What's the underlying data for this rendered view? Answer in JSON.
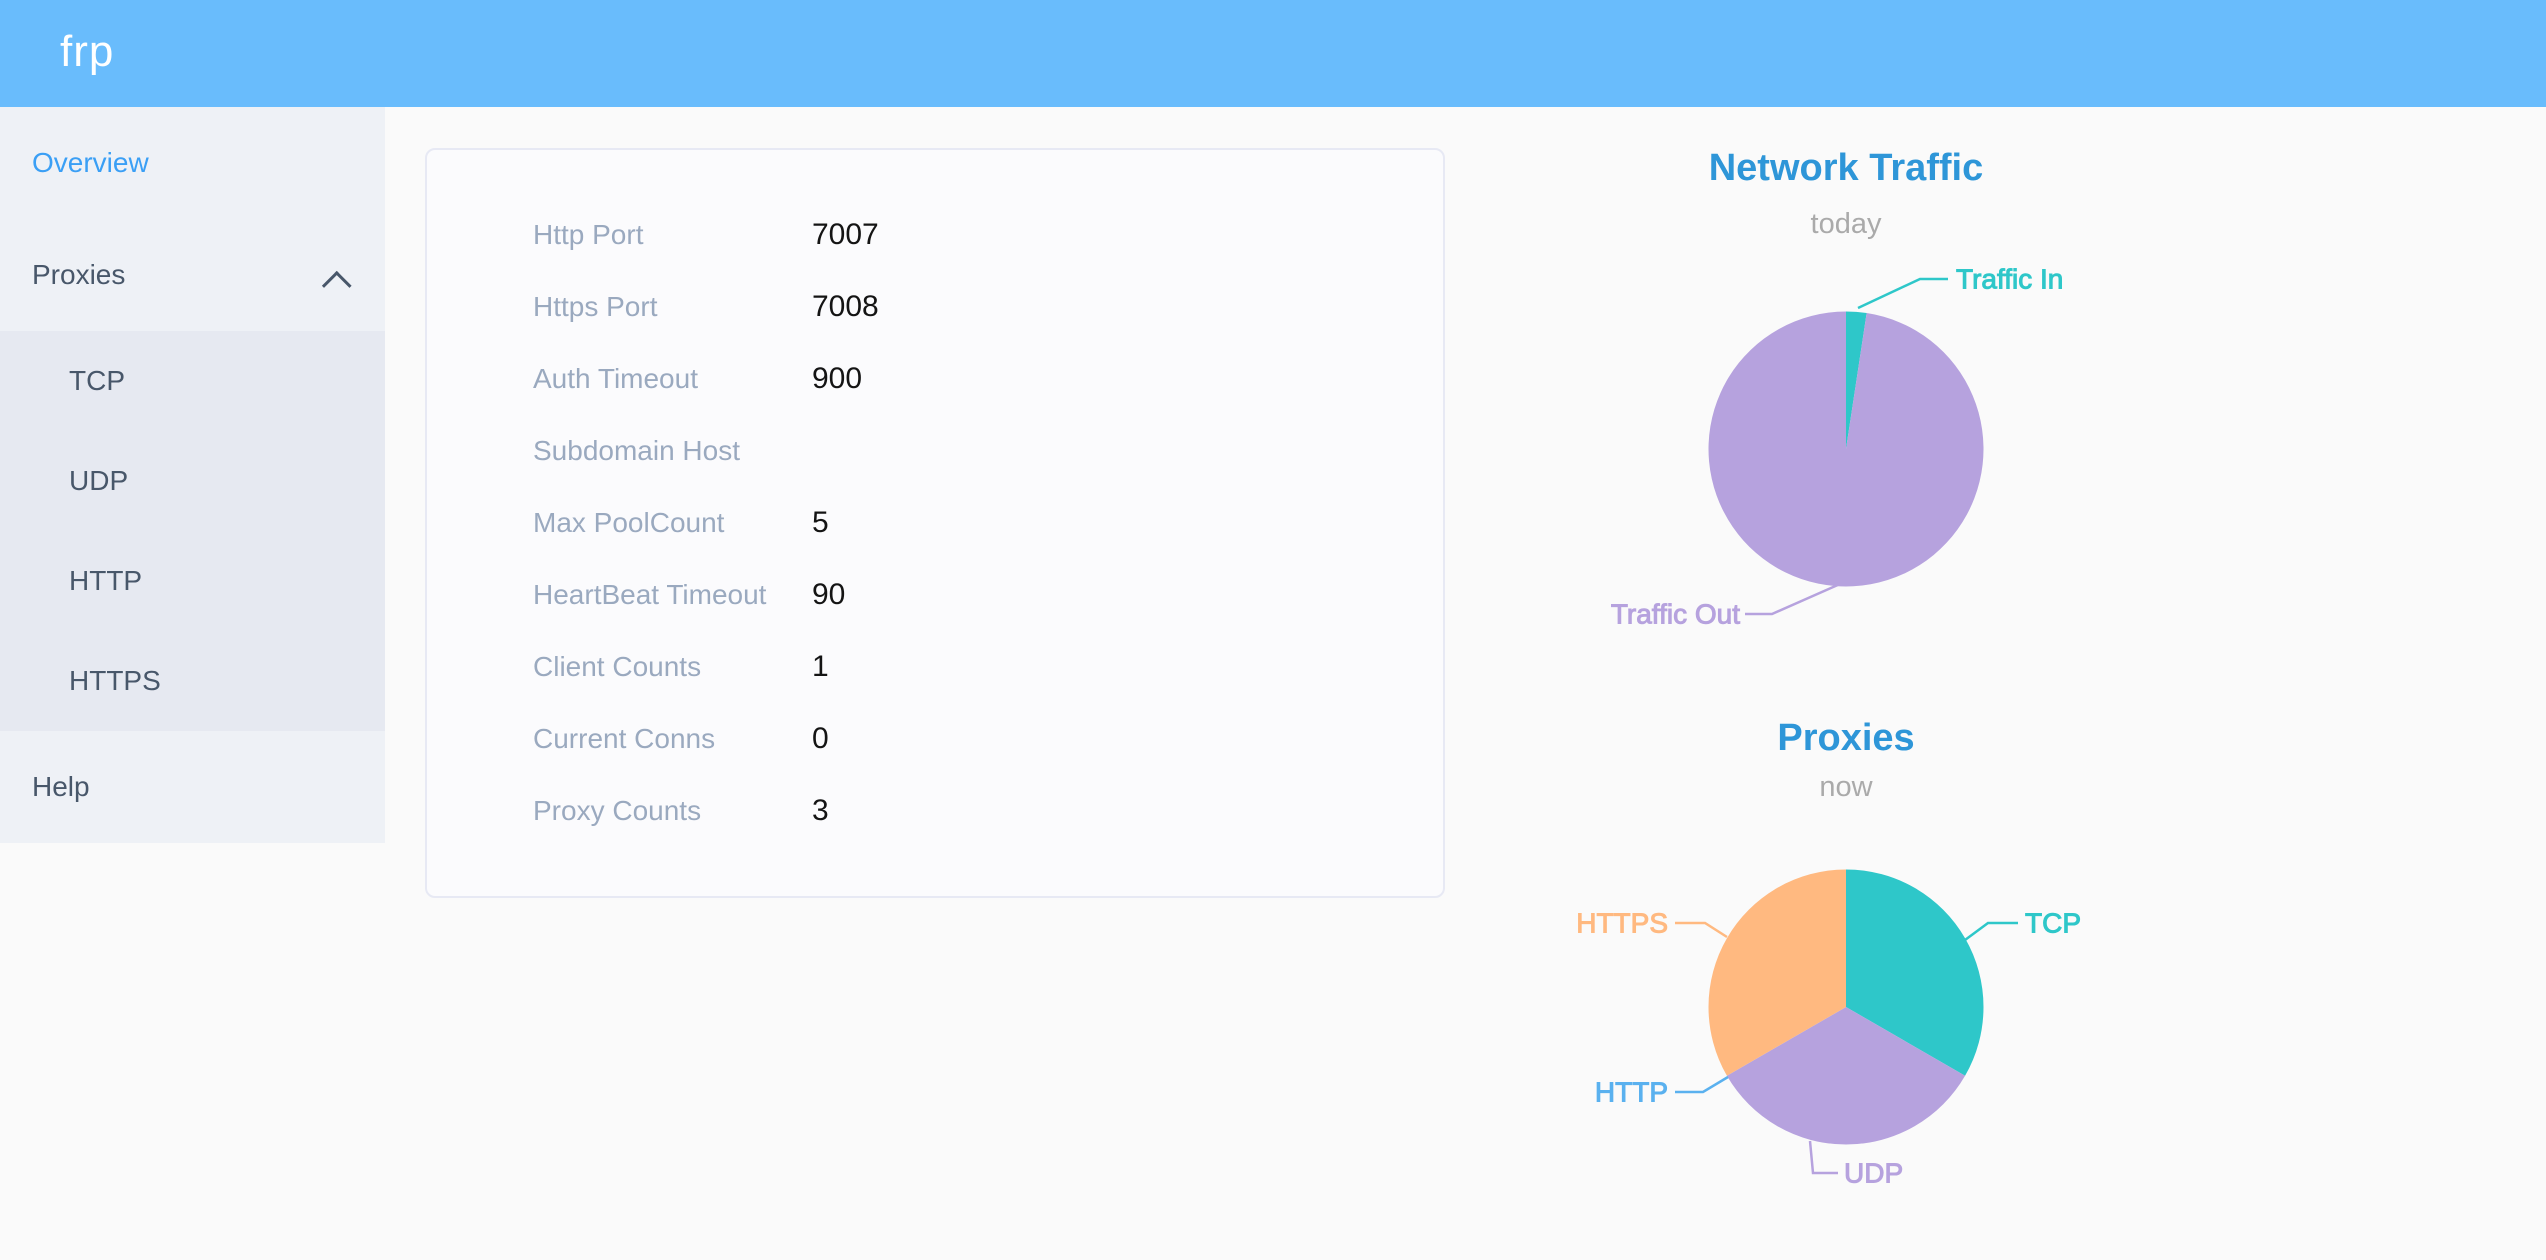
{
  "header": {
    "logo": "frp"
  },
  "sidebar": {
    "overview": "Overview",
    "proxies": "Proxies",
    "proxy_types": [
      "TCP",
      "UDP",
      "HTTP",
      "HTTPS"
    ],
    "help": "Help"
  },
  "server_info": {
    "rows": [
      {
        "label": "Http Port",
        "value": "7007"
      },
      {
        "label": "Https Port",
        "value": "7008"
      },
      {
        "label": "Auth Timeout",
        "value": "900"
      },
      {
        "label": "Subdomain Host",
        "value": ""
      },
      {
        "label": "Max PoolCount",
        "value": "5"
      },
      {
        "label": "HeartBeat Timeout",
        "value": "90"
      },
      {
        "label": "Client Counts",
        "value": "1"
      },
      {
        "label": "Current Conns",
        "value": "0"
      },
      {
        "label": "Proxy Counts",
        "value": "3"
      }
    ]
  },
  "chart_data": [
    {
      "type": "pie",
      "title": "Network Traffic",
      "subtitle": "today",
      "labels": [
        "Traffic In",
        "Traffic Out"
      ],
      "values": [
        2.4,
        97.6
      ],
      "unit": "percent-of-circle (estimated from slice angles)",
      "colors": [
        "#2ec7c9",
        "#b6a2de"
      ],
      "legend_position": "callout-labels"
    },
    {
      "type": "pie",
      "title": "Proxies",
      "subtitle": "now",
      "labels": [
        "TCP",
        "UDP",
        "HTTP",
        "HTTPS"
      ],
      "values": [
        1,
        1,
        0,
        1
      ],
      "colors": [
        "#2ec7c9",
        "#b6a2de",
        "#5ab1ef",
        "#ffb980"
      ],
      "legend_position": "callout-labels"
    }
  ],
  "theme": {
    "header_bg": "#69bcfc",
    "sidebar_bg": "#eef1f6",
    "submenu_bg": "#e6e9f1",
    "nav_color": "#48576a",
    "active_nav_color": "#3a9ff5",
    "chart_title_color": "#2e96d8",
    "panel_label_color": "#9aa9bf"
  }
}
